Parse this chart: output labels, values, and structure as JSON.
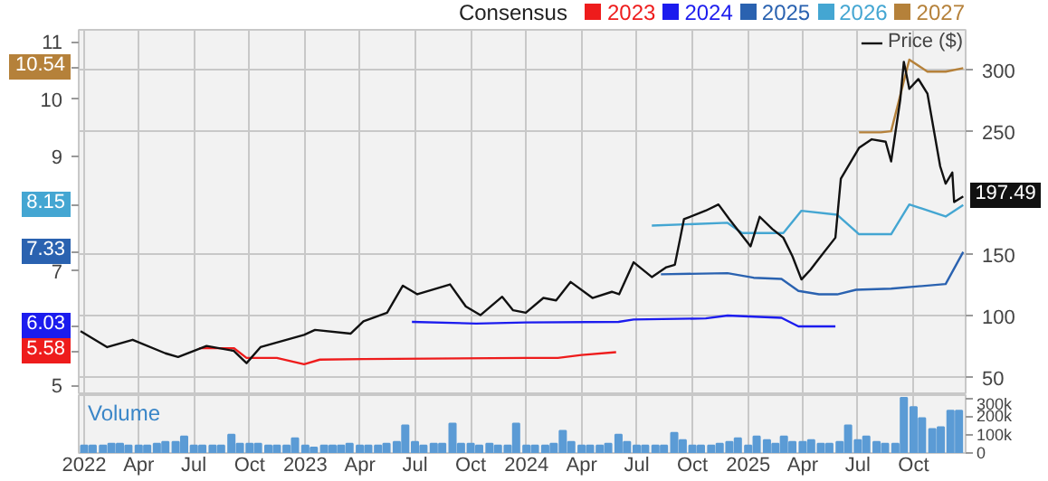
{
  "chart_data": [
    {
      "type": "line",
      "legend_title": "Consensus",
      "legend": "top right",
      "grid": true,
      "tick_labels": "y",
      "xlim": [
        "2021-12-23",
        "2025-12-26"
      ],
      "xticks": [
        "2022",
        "2022-04",
        "2022-07",
        "2022-10",
        "2023",
        "2023-04",
        "2023-07",
        "2023-10",
        "2024",
        "2024-04",
        "2024-07",
        "2024-10",
        "2025",
        "2025-04",
        "2025-07",
        "2025-10"
      ],
      "ylim": [
        4.83,
        11.21
      ],
      "yticks": [
        5,
        5.58,
        6.03,
        7,
        7.33,
        8.15,
        9,
        10,
        10.54,
        11
      ],
      "y2lim": [
        36,
        333
      ],
      "y2ticks": [
        50,
        100,
        150,
        250,
        300
      ],
      "series": [
        {
          "name": "2023",
          "color": "#ee1c1c",
          "x": [
            "2022-07-10",
            "2022-09-05",
            "2022-09-26",
            "2022-11-15",
            "2022-12-30",
            "2023-01-25",
            "2023-04-07",
            "2023-12-31",
            "2024-02-22",
            "2024-04-01",
            "2024-05-28"
          ],
          "values": [
            5.65,
            5.65,
            5.48,
            5.48,
            5.37,
            5.45,
            5.46,
            5.48,
            5.48,
            5.53,
            5.58
          ]
        },
        {
          "name": "2024",
          "color": "#1c1cee",
          "x": [
            "2023-06-26",
            "2023-10-10",
            "2023-12-31",
            "2024-06-01",
            "2024-06-26",
            "2024-10-23",
            "2024-11-28",
            "2025-02-25",
            "2025-03-25",
            "2025-05-25"
          ],
          "values": [
            6.11,
            6.08,
            6.1,
            6.11,
            6.15,
            6.17,
            6.22,
            6.18,
            6.03,
            6.03
          ]
        },
        {
          "name": "2025",
          "color": "#2a62b0",
          "x": [
            "2024-08-10",
            "2024-11-28",
            "2025-01-10",
            "2025-02-25",
            "2025-03-25",
            "2025-04-28",
            "2025-05-28",
            "2025-06-28",
            "2025-08-25",
            "2025-11-23",
            "2025-12-22"
          ],
          "values": [
            6.94,
            6.96,
            6.88,
            6.86,
            6.65,
            6.59,
            6.59,
            6.67,
            6.69,
            6.77,
            7.33
          ]
        },
        {
          "name": "2026",
          "color": "#44a6d2",
          "x": [
            "2024-07-26",
            "2024-11-28",
            "2024-12-22",
            "2025-02-28",
            "2025-03-30",
            "2025-05-28",
            "2025-07-03",
            "2025-08-25",
            "2025-09-24",
            "2025-11-23",
            "2025-12-22"
          ],
          "values": [
            7.79,
            7.84,
            7.66,
            7.66,
            8.05,
            7.98,
            7.64,
            7.64,
            8.16,
            7.95,
            8.15
          ]
        },
        {
          "name": "2027",
          "color": "#b5813a",
          "x": [
            "2025-07-03",
            "2025-08-08",
            "2025-08-25",
            "2025-09-24",
            "2025-10-24",
            "2025-11-23",
            "2025-12-22"
          ],
          "values": [
            9.42,
            9.42,
            9.44,
            10.69,
            10.48,
            10.48,
            10.54
          ]
        },
        {
          "name": "Price ($)",
          "color": "#111111",
          "axis": "y2",
          "x": [
            "2021-12-26",
            "2022-02-08",
            "2022-03-22",
            "2022-05-15",
            "2022-06-05",
            "2022-07-22",
            "2022-09-05",
            "2022-09-26",
            "2022-10-19",
            "2022-12-30",
            "2023-01-17",
            "2023-03-17",
            "2023-04-07",
            "2023-05-16",
            "2023-06-11",
            "2023-07-05",
            "2023-08-28",
            "2023-09-23",
            "2023-10-17",
            "2023-11-22",
            "2023-12-10",
            "2023-12-31",
            "2024-01-29",
            "2024-02-19",
            "2024-03-14",
            "2024-04-19",
            "2024-05-21",
            "2024-06-02",
            "2024-06-26",
            "2024-07-26",
            "2024-08-19",
            "2024-09-02",
            "2024-09-11",
            "2024-09-17",
            "2024-10-23",
            "2024-11-13",
            "2024-12-01",
            "2025-01-05",
            "2025-01-20",
            "2025-02-10",
            "2025-02-28",
            "2025-03-15",
            "2025-03-30",
            "2025-04-14",
            "2025-04-28",
            "2025-05-25",
            "2025-06-03",
            "2025-07-03",
            "2025-07-24",
            "2025-08-16",
            "2025-08-25",
            "2025-09-09",
            "2025-09-15",
            "2025-09-24",
            "2025-10-09",
            "2025-10-24",
            "2025-11-14",
            "2025-11-23",
            "2025-12-04",
            "2025-12-07",
            "2025-12-22"
          ],
          "values": [
            88,
            75,
            81,
            70,
            67,
            76,
            72,
            62,
            75,
            85,
            89,
            86,
            96,
            103,
            125,
            118,
            126,
            108,
            101,
            116,
            105,
            103,
            115,
            113,
            128,
            115,
            120,
            118,
            144,
            132,
            140,
            142,
            164,
            179,
            186,
            191,
            179,
            157,
            181,
            171,
            164,
            149,
            130,
            138,
            147,
            164,
            212,
            237,
            244,
            242,
            226,
            276,
            307,
            285,
            293,
            281,
            222,
            208,
            217,
            193,
            197.49
          ],
          "value_labels": [
            null,
            null,
            null,
            null,
            null,
            null,
            null,
            null,
            null,
            null,
            null,
            null,
            null,
            null,
            null,
            null,
            null,
            null,
            null,
            null,
            null,
            null,
            null,
            null,
            null,
            null,
            null,
            null,
            null,
            null,
            null,
            null,
            null,
            null,
            null,
            null,
            null,
            null,
            null,
            null,
            null,
            null,
            null,
            null,
            null,
            null,
            null,
            null,
            null,
            null,
            null,
            null,
            null,
            null,
            null,
            null,
            null,
            null,
            null,
            null,
            "197.49"
          ]
        }
      ]
    },
    {
      "type": "bar",
      "grid": "x",
      "annotations": [
        "Volume"
      ],
      "xlim": [
        "2021-12-23",
        "2025-12-26"
      ],
      "xticks": [
        {
          "value": "2022",
          "label": "2022"
        },
        {
          "value": "2022-04",
          "label": "Apr"
        },
        {
          "value": "2022-07",
          "label": "Jul"
        },
        {
          "value": "2022-10",
          "label": "Oct"
        },
        {
          "value": "2023",
          "label": "2023"
        },
        {
          "value": "2023-04",
          "label": "Apr"
        },
        {
          "value": "2023-07",
          "label": "Jul"
        },
        {
          "value": "2023-10",
          "label": "Oct"
        },
        {
          "value": "2024",
          "label": "2024"
        },
        {
          "value": "2024-04",
          "label": "Apr"
        },
        {
          "value": "2024-07",
          "label": "Jul"
        },
        {
          "value": "2024-10",
          "label": "Oct"
        },
        {
          "value": "2025",
          "label": "2025"
        },
        {
          "value": "2025-04",
          "label": "Apr"
        },
        {
          "value": "2025-07",
          "label": "Jul"
        },
        {
          "value": "2025-10",
          "label": "Oct"
        }
      ],
      "y2lim": [
        0,
        315000
      ],
      "y2ticks": [
        {
          "value": 0,
          "label": "0"
        },
        {
          "value": 100000,
          "label": "100k"
        },
        {
          "value": 200000,
          "label": "200k"
        },
        {
          "value": 300000,
          "label": "300k"
        }
      ],
      "x": [
        "2022-01-01",
        "2022-01-15",
        "2022-02-01",
        "2022-02-15",
        "2022-03-01",
        "2022-03-15",
        "2022-04-01",
        "2022-04-15",
        "2022-05-01",
        "2022-05-15",
        "2022-06-01",
        "2022-06-15",
        "2022-07-01",
        "2022-07-15",
        "2022-08-01",
        "2022-08-15",
        "2022-09-01",
        "2022-09-15",
        "2022-10-01",
        "2022-10-15",
        "2022-11-01",
        "2022-11-15",
        "2022-12-01",
        "2022-12-15",
        "2023-01-01",
        "2023-01-15",
        "2023-02-01",
        "2023-02-15",
        "2023-03-01",
        "2023-03-15",
        "2023-04-01",
        "2023-04-15",
        "2023-05-01",
        "2023-05-15",
        "2023-06-01",
        "2023-06-15",
        "2023-07-01",
        "2023-07-15",
        "2023-08-01",
        "2023-08-15",
        "2023-09-01",
        "2023-09-15",
        "2023-10-01",
        "2023-10-15",
        "2023-11-01",
        "2023-11-15",
        "2023-12-01",
        "2023-12-15",
        "2024-01-01",
        "2024-01-15",
        "2024-02-01",
        "2024-02-15",
        "2024-03-01",
        "2024-03-15",
        "2024-04-01",
        "2024-04-15",
        "2024-05-01",
        "2024-05-15",
        "2024-06-01",
        "2024-06-15",
        "2024-07-01",
        "2024-07-15",
        "2024-08-01",
        "2024-08-15",
        "2024-09-01",
        "2024-09-15",
        "2024-10-01",
        "2024-10-15",
        "2024-11-01",
        "2024-11-15",
        "2024-12-01",
        "2024-12-15",
        "2025-01-01",
        "2025-01-15",
        "2025-02-01",
        "2025-02-15",
        "2025-03-01",
        "2025-03-15",
        "2025-04-01",
        "2025-04-15",
        "2025-05-01",
        "2025-05-15",
        "2025-06-01",
        "2025-06-15",
        "2025-07-01",
        "2025-07-15",
        "2025-08-01",
        "2025-08-15",
        "2025-09-01",
        "2025-09-15",
        "2025-10-01",
        "2025-10-15",
        "2025-11-01",
        "2025-11-15",
        "2025-12-01",
        "2025-12-15"
      ],
      "series": [
        {
          "color": "#5b9bd5",
          "axis": "y2",
          "values": [
            40000,
            40000,
            40000,
            50000,
            50000,
            40000,
            40000,
            40000,
            50000,
            60000,
            60000,
            90000,
            40000,
            40000,
            40000,
            40000,
            100000,
            50000,
            50000,
            50000,
            40000,
            40000,
            40000,
            80000,
            40000,
            30000,
            40000,
            40000,
            40000,
            50000,
            40000,
            40000,
            40000,
            50000,
            60000,
            150000,
            60000,
            40000,
            50000,
            50000,
            160000,
            50000,
            50000,
            40000,
            50000,
            40000,
            40000,
            160000,
            40000,
            40000,
            40000,
            50000,
            120000,
            60000,
            40000,
            40000,
            40000,
            50000,
            100000,
            60000,
            40000,
            40000,
            40000,
            40000,
            110000,
            70000,
            40000,
            40000,
            40000,
            50000,
            60000,
            80000,
            40000,
            90000,
            70000,
            50000,
            90000,
            60000,
            60000,
            70000,
            50000,
            50000,
            60000,
            150000,
            70000,
            90000,
            60000,
            50000,
            50000,
            300000,
            250000,
            190000,
            130000,
            140000,
            230000,
            230000
          ]
        }
      ]
    }
  ]
}
